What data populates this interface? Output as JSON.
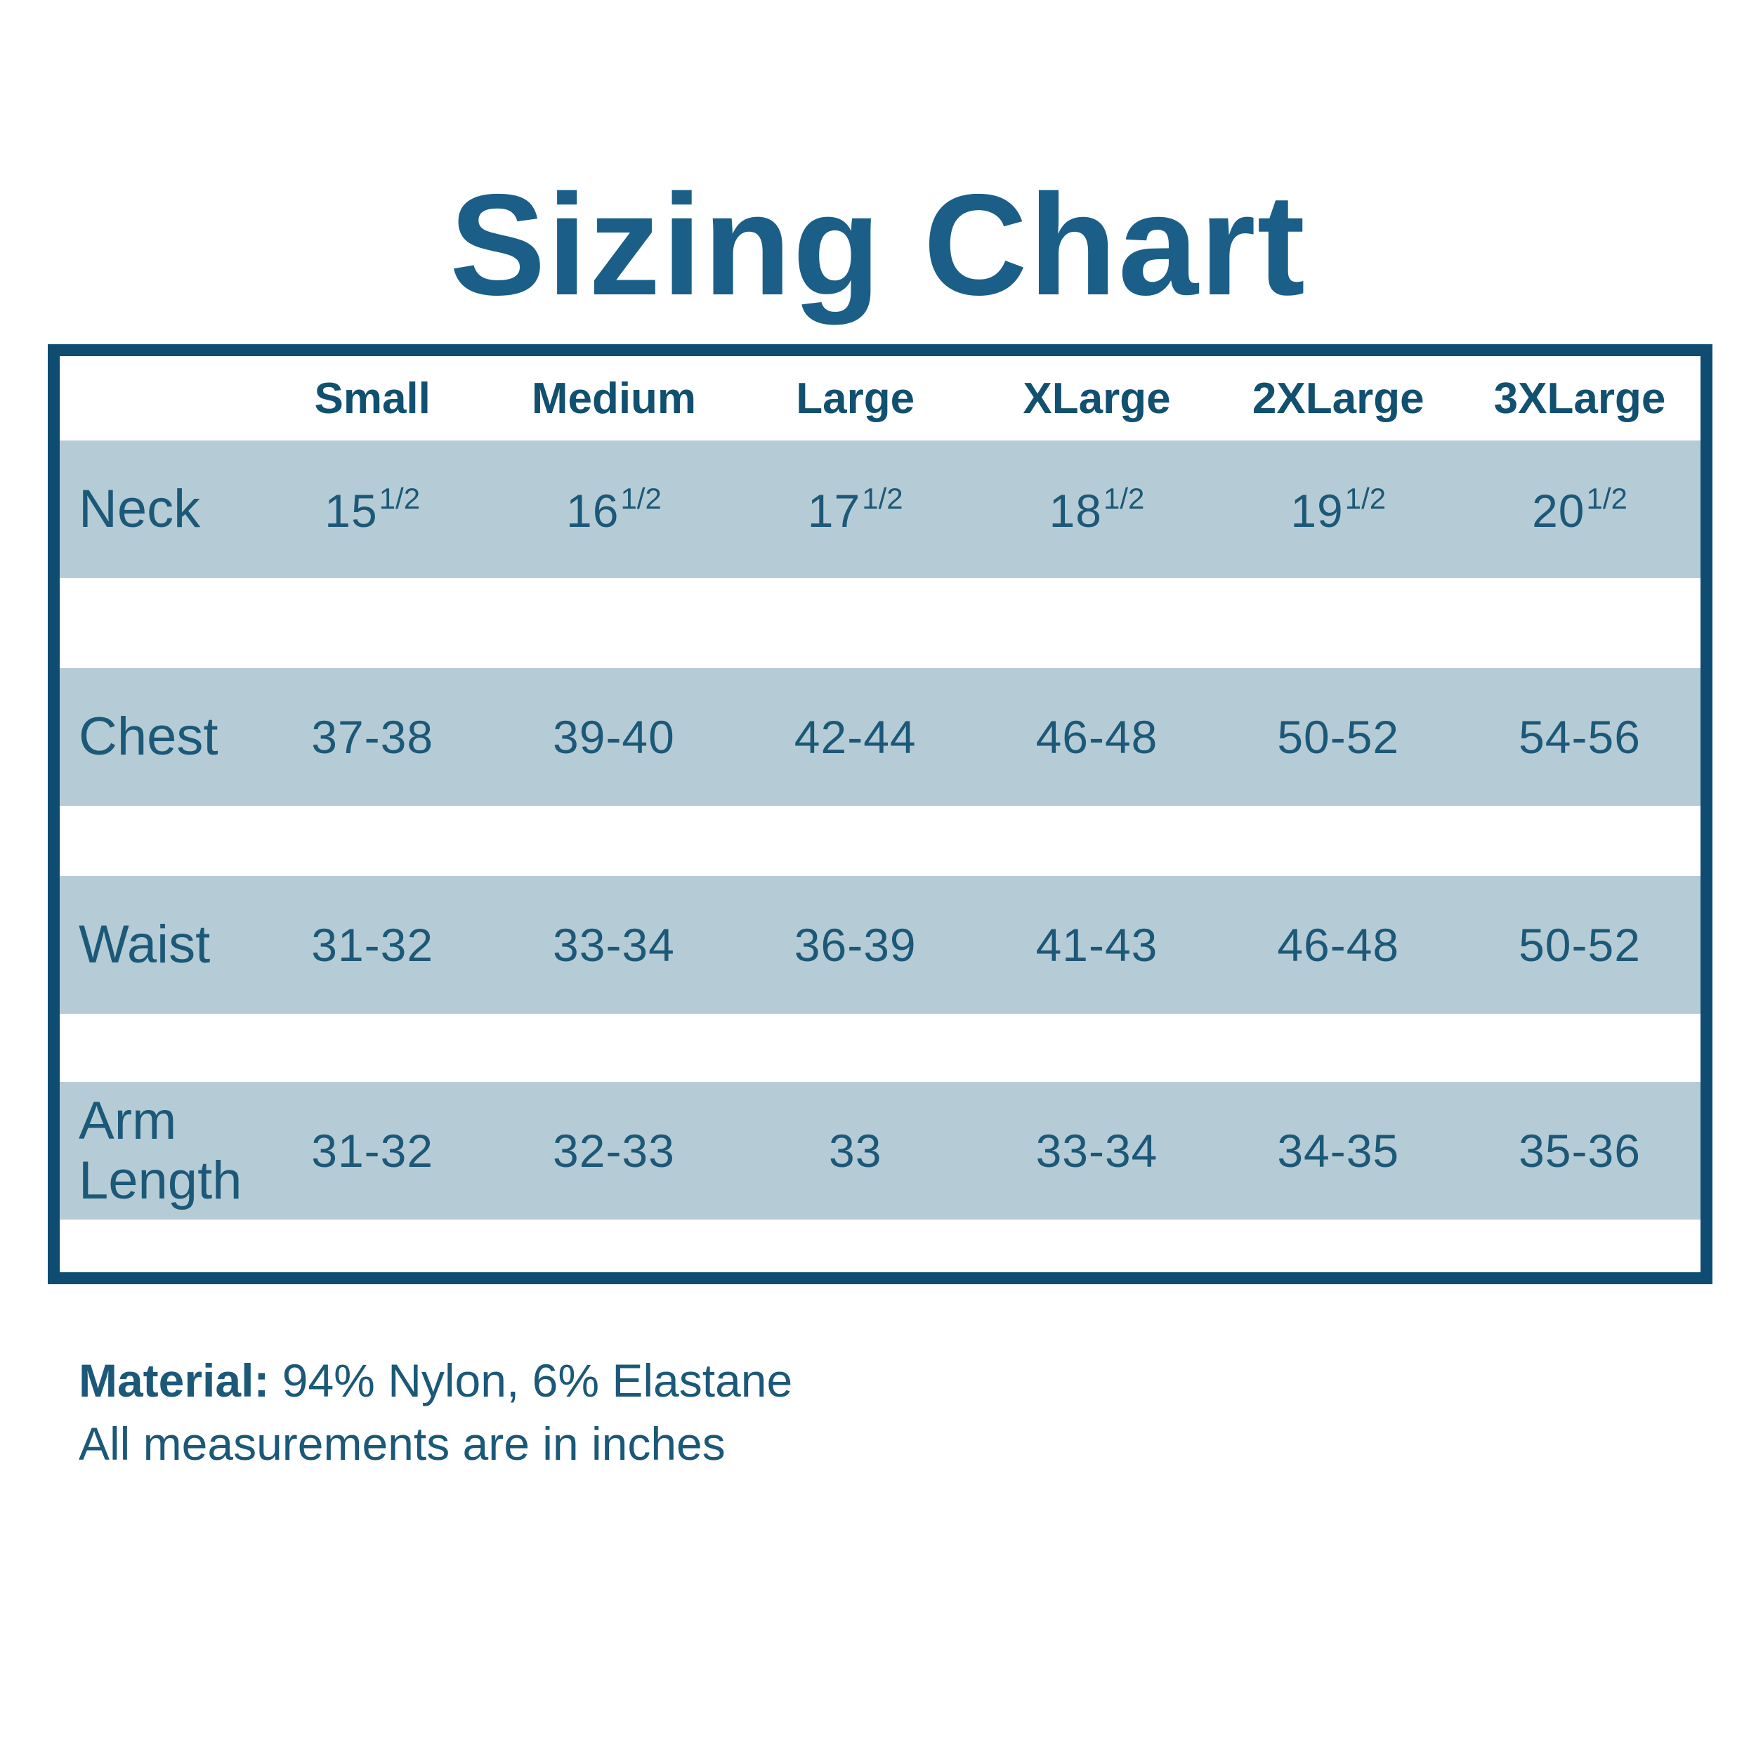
{
  "title": "Sizing Chart",
  "colors": {
    "navy": "#0E4C72",
    "stripe": "#B5CCD6",
    "title_blue": "#1B5E87",
    "text_blue": "#1C5878",
    "header_blue": "#11506F"
  },
  "table": {
    "col_headers": [
      "Small",
      "Medium",
      "Large",
      "XLarge",
      "2XLarge",
      "3XLarge"
    ],
    "rows": [
      {
        "label": "Neck",
        "values": [
          {
            "base": "15",
            "sup": "1/2"
          },
          {
            "base": "16",
            "sup": "1/2"
          },
          {
            "base": "17",
            "sup": "1/2"
          },
          {
            "base": "18",
            "sup": "1/2"
          },
          {
            "base": "19",
            "sup": "1/2"
          },
          {
            "base": "20",
            "sup": "1/2"
          }
        ]
      },
      {
        "label": "Chest",
        "values": [
          "37-38",
          "39-40",
          "42-44",
          "46-48",
          "50-52",
          "54-56"
        ]
      },
      {
        "label": "Waist",
        "values": [
          "31-32",
          "33-34",
          "36-39",
          "41-43",
          "46-48",
          "50-52"
        ]
      },
      {
        "label": "Arm Length",
        "values": [
          "31-32",
          "32-33",
          "33",
          "33-34",
          "34-35",
          "35-36"
        ]
      }
    ]
  },
  "footer": {
    "material_label": "Material:",
    "material_value": "94% Nylon, 6% Elastane",
    "note": "All measurements are in inches"
  },
  "chart_data": {
    "type": "table",
    "title": "Sizing Chart",
    "columns": [
      "Small",
      "Medium",
      "Large",
      "XLarge",
      "2XLarge",
      "3XLarge"
    ],
    "rows": [
      {
        "label": "Neck",
        "values": [
          "15 1/2",
          "16 1/2",
          "17 1/2",
          "18 1/2",
          "19 1/2",
          "20 1/2"
        ]
      },
      {
        "label": "Chest",
        "values": [
          "37-38",
          "39-40",
          "42-44",
          "46-48",
          "50-52",
          "54-56"
        ]
      },
      {
        "label": "Waist",
        "values": [
          "31-32",
          "33-34",
          "36-39",
          "41-43",
          "46-48",
          "50-52"
        ]
      },
      {
        "label": "Arm Length",
        "values": [
          "31-32",
          "32-33",
          "33",
          "33-34",
          "34-35",
          "35-36"
        ]
      }
    ],
    "units": "inches",
    "notes": [
      "Material: 94% Nylon, 6% Elastane",
      "All measurements are in inches"
    ]
  }
}
